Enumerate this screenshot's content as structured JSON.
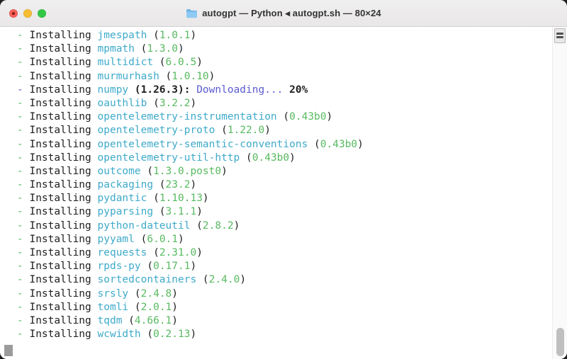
{
  "window": {
    "title": "autogpt — Python ◂ autogpt.sh — 80×24",
    "traffic_lights": {
      "close_color": "#f4615b",
      "close_dot_color": "#8b180d",
      "minimize_color": "#f6bd33",
      "zoom_color": "#32c846"
    }
  },
  "terminal": {
    "action_label": "Installing",
    "bullet": "-",
    "lines": [
      {
        "package": "jmespath",
        "version": "1.0.1"
      },
      {
        "package": "mpmath",
        "version": "1.3.0"
      },
      {
        "package": "multidict",
        "version": "6.0.5"
      },
      {
        "package": "murmurhash",
        "version": "1.0.10"
      },
      {
        "package": "numpy",
        "version": "1.26.3",
        "status": "Downloading...",
        "progress": "20%"
      },
      {
        "package": "oauthlib",
        "version": "3.2.2"
      },
      {
        "package": "opentelemetry-instrumentation",
        "version": "0.43b0"
      },
      {
        "package": "opentelemetry-proto",
        "version": "1.22.0"
      },
      {
        "package": "opentelemetry-semantic-conventions",
        "version": "0.43b0"
      },
      {
        "package": "opentelemetry-util-http",
        "version": "0.43b0"
      },
      {
        "package": "outcome",
        "version": "1.3.0.post0"
      },
      {
        "package": "packaging",
        "version": "23.2"
      },
      {
        "package": "pydantic",
        "version": "1.10.13"
      },
      {
        "package": "pyparsing",
        "version": "3.1.1"
      },
      {
        "package": "python-dateutil",
        "version": "2.8.2"
      },
      {
        "package": "pyyaml",
        "version": "6.0.1"
      },
      {
        "package": "requests",
        "version": "2.31.0"
      },
      {
        "package": "rpds-py",
        "version": "0.17.1"
      },
      {
        "package": "sortedcontainers",
        "version": "2.4.0"
      },
      {
        "package": "srsly",
        "version": "2.4.8"
      },
      {
        "package": "tomli",
        "version": "2.0.1"
      },
      {
        "package": "tqdm",
        "version": "4.66.1"
      },
      {
        "package": "wcwidth",
        "version": "0.2.13"
      }
    ]
  },
  "colors": {
    "bullet_green": "#52b25b",
    "version_green": "#58ba61",
    "package_cyan": "#3eaaca",
    "accent_indigo": "#5a5ad2",
    "text": "#1e1e1e"
  }
}
